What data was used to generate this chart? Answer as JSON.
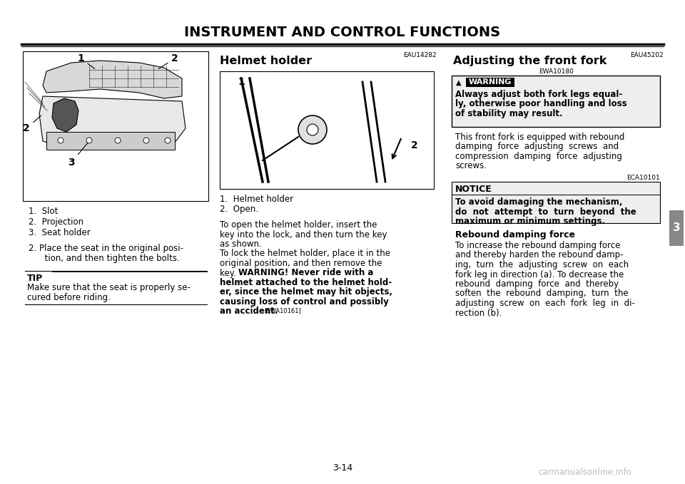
{
  "title": "INSTRUMENT AND CONTROL FUNCTIONS",
  "page_number": "3-14",
  "bg": "#ffffff",
  "title_fontsize": 14,
  "tab_number": "3",
  "left_col": {
    "parts_list_1": "1.  Slot",
    "parts_list_2": "2.  Projection",
    "parts_list_3": "3.  Seat holder",
    "step2_line1": "2. Place the seat in the original posi-",
    "step2_line2": "      tion, and then tighten the bolts.",
    "tip_label": "TIP",
    "tip_line1": "Make sure that the seat is properly se-",
    "tip_line2": "cured before riding."
  },
  "mid_col": {
    "section_code": "EAU14282",
    "heading": "Helmet holder",
    "part1": "1.  Helmet holder",
    "part2": "2.  Open.",
    "body1": "To open the helmet holder, insert the",
    "body2": "key into the lock, and then turn the key",
    "body3": "as shown.",
    "body4": "To lock the helmet holder, place it in the",
    "body5": "original position, and then remove the",
    "body6": "key.  WARNING! Never ride with a",
    "body7": "helmet attached to the helmet hold-",
    "body8": "er, since the helmet may hit objects,",
    "body9": "causing loss of control and possibly",
    "body10": "an accident.",
    "warn_code": "[EWA10161]"
  },
  "right_col": {
    "section_code": "EAU45202",
    "heading": "Adjusting the front fork",
    "ewa_code": "EWA10180",
    "warn_label": "WARNING",
    "warn1": "Always adjust both fork legs equal-",
    "warn2": "ly, otherwise poor handling and loss",
    "warn3": "of stability may result.",
    "body1": "This front fork is equipped with rebound",
    "body2": "damping  force  adjusting  screws  and",
    "body3": "compression  damping  force  adjusting",
    "body4": "screws.",
    "eca_code": "ECA10101",
    "notice_label": "NOTICE",
    "notice1": "To avoid damaging the mechanism,",
    "notice2": "do  not  attempt  to  turn  beyond  the",
    "notice3": "maximum or minimum settings.",
    "reb_heading": "Rebound damping force",
    "reb1": "To increase the rebound damping force",
    "reb2": "and thereby harden the rebound damp-",
    "reb3": "ing,  turn  the  adjusting  screw  on  each",
    "reb4": "fork leg in direction (a). To decrease the",
    "reb5": "rebound  damping  force  and  thereby",
    "reb6": "soften  the  rebound  damping,  turn  the",
    "reb7": "adjusting  screw  on  each  fork  leg  in  di-",
    "reb8": "rection (b).",
    "watermark": "carmanualsonline.info"
  }
}
